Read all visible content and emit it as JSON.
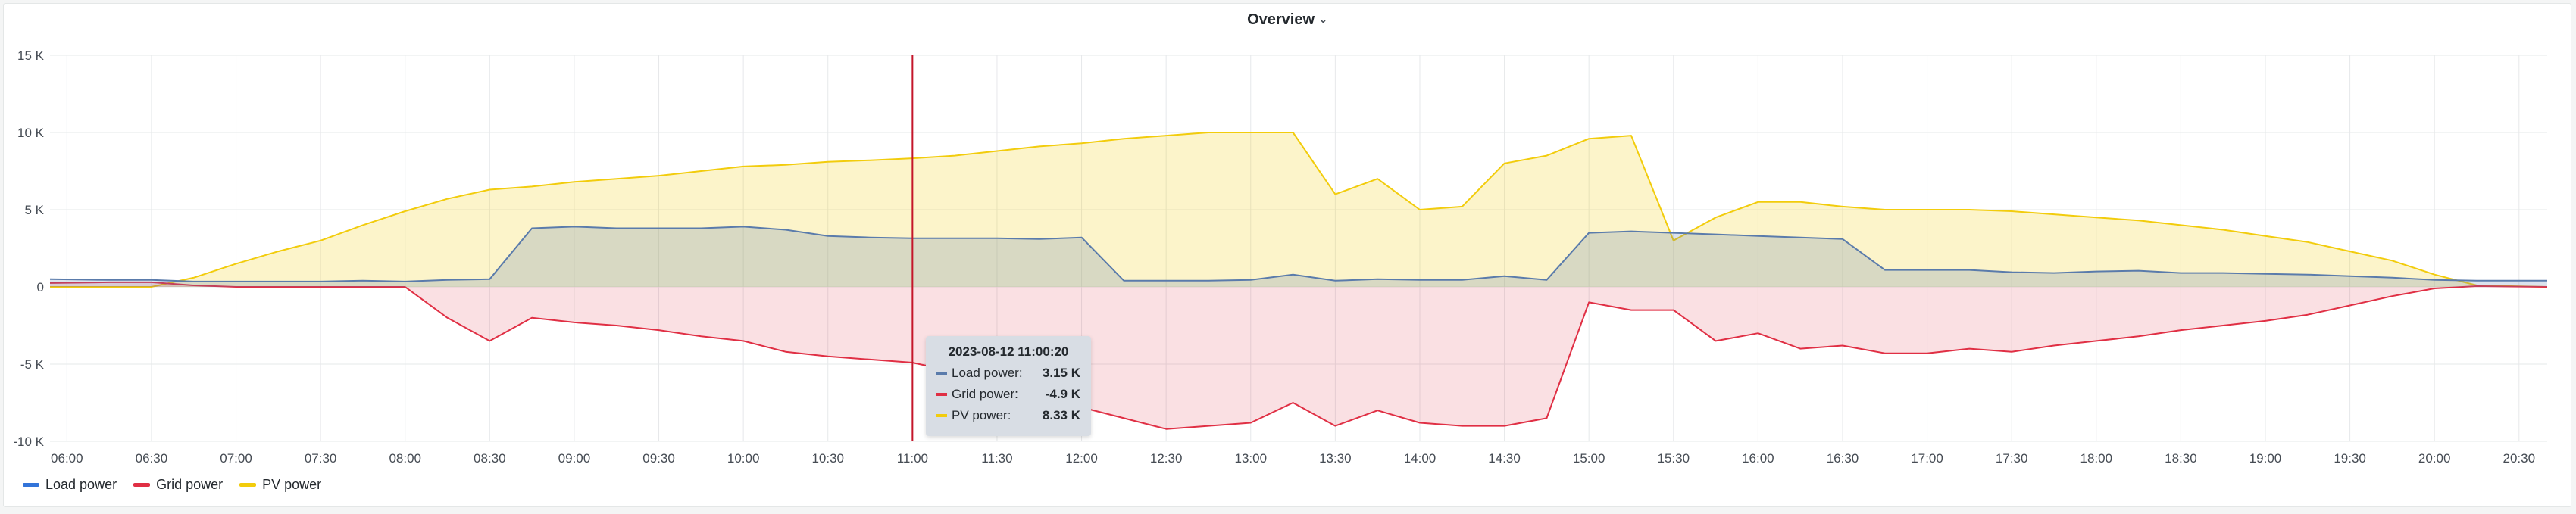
{
  "panel": {
    "title": "Overview"
  },
  "tooltip": {
    "title": "2023-08-12 11:00:20",
    "rows": [
      {
        "label": "Load power:",
        "value": "3.15 K"
      },
      {
        "label": "Grid power:",
        "value": "-4.9 K"
      },
      {
        "label": "PV power:",
        "value": "8.33 K"
      }
    ]
  },
  "legend": [
    "Load power",
    "Grid power",
    "PV power"
  ],
  "colors": {
    "load": "#5a7bab",
    "grid": "#e02f44",
    "pv": "#f2cc0c",
    "cursor": "#c4162a"
  },
  "chart_data": {
    "type": "area",
    "title": "Overview",
    "xlabel": "",
    "ylabel": "",
    "x_ticks": [
      "06:00",
      "06:30",
      "07:00",
      "07:30",
      "08:00",
      "08:30",
      "09:00",
      "09:30",
      "10:00",
      "10:30",
      "11:00",
      "11:30",
      "12:00",
      "12:30",
      "13:00",
      "13:30",
      "14:00",
      "14:30",
      "15:00",
      "15:30",
      "16:00",
      "16:30",
      "17:00",
      "17:30",
      "18:00",
      "18:30",
      "19:00",
      "19:30",
      "20:00",
      "20:30"
    ],
    "y_ticks": [
      "15 K",
      "10 K",
      "5 K",
      "0",
      "-5 K",
      "-10 K"
    ],
    "xlim": [
      "05:54",
      "20:40"
    ],
    "ylim": [
      -10000,
      15000
    ],
    "grid": true,
    "legend_position": "bottom-left",
    "cursor_time": "11:00",
    "x": [
      "05:54",
      "06:15",
      "06:30",
      "06:45",
      "07:00",
      "07:15",
      "07:30",
      "07:45",
      "08:00",
      "08:15",
      "08:30",
      "08:45",
      "09:00",
      "09:15",
      "09:30",
      "09:45",
      "10:00",
      "10:15",
      "10:30",
      "10:45",
      "11:00",
      "11:15",
      "11:30",
      "11:45",
      "12:00",
      "12:15",
      "12:30",
      "12:45",
      "13:00",
      "13:15",
      "13:30",
      "13:45",
      "14:00",
      "14:15",
      "14:30",
      "14:45",
      "15:00",
      "15:15",
      "15:30",
      "15:45",
      "16:00",
      "16:15",
      "16:30",
      "16:45",
      "17:00",
      "17:15",
      "17:30",
      "17:45",
      "18:00",
      "18:15",
      "18:30",
      "18:45",
      "19:00",
      "19:15",
      "19:30",
      "19:45",
      "20:00",
      "20:15",
      "20:40"
    ],
    "series": [
      {
        "name": "Load power",
        "values": [
          500,
          450,
          450,
          350,
          350,
          350,
          350,
          400,
          350,
          450,
          500,
          3800,
          3900,
          3800,
          3800,
          3800,
          3900,
          3700,
          3300,
          3200,
          3150,
          3150,
          3150,
          3100,
          3200,
          400,
          400,
          400,
          450,
          800,
          400,
          500,
          450,
          450,
          700,
          450,
          3500,
          3600,
          3500,
          3400,
          3300,
          3200,
          3100,
          1100,
          1100,
          1100,
          950,
          900,
          1000,
          1050,
          900,
          900,
          850,
          800,
          700,
          600,
          450,
          400,
          400
        ]
      },
      {
        "name": "Grid power",
        "values": [
          250,
          300,
          300,
          100,
          0,
          0,
          0,
          0,
          0,
          -2000,
          -3500,
          -2000,
          -2300,
          -2500,
          -2800,
          -3200,
          -3500,
          -4200,
          -4500,
          -4700,
          -4900,
          -5500,
          -6200,
          -7000,
          -7800,
          -8500,
          -9200,
          -9000,
          -8800,
          -7500,
          -9000,
          -8000,
          -8800,
          -9000,
          -9000,
          -8500,
          -1000,
          -1500,
          -1500,
          -3500,
          -3000,
          -4000,
          -3800,
          -4300,
          -4300,
          -4000,
          -4200,
          -3800,
          -3500,
          -3200,
          -2800,
          -2500,
          -2200,
          -1800,
          -1200,
          -600,
          -100,
          50,
          0
        ]
      },
      {
        "name": "PV power",
        "values": [
          0,
          0,
          0,
          600,
          1500,
          2300,
          3000,
          4000,
          4900,
          5700,
          6300,
          6500,
          6800,
          7000,
          7200,
          7500,
          7800,
          7900,
          8100,
          8200,
          8330,
          8500,
          8800,
          9100,
          9300,
          9600,
          9800,
          10000,
          10000,
          10000,
          6000,
          7000,
          5000,
          5200,
          8000,
          8500,
          9600,
          9800,
          3000,
          4500,
          5500,
          5500,
          5200,
          5000,
          5000,
          5000,
          4900,
          4700,
          4500,
          4300,
          4000,
          3700,
          3300,
          2900,
          2300,
          1700,
          800,
          100,
          0
        ]
      }
    ]
  }
}
